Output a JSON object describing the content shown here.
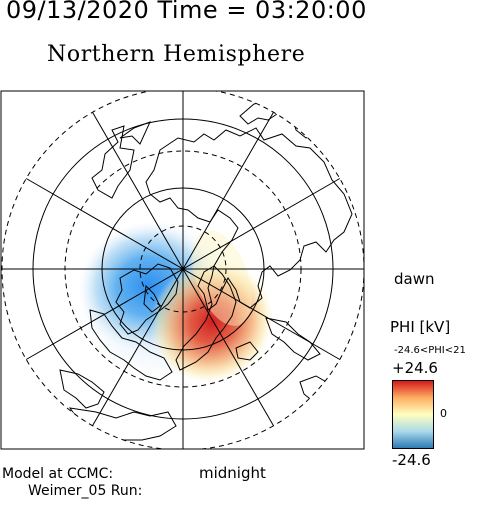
{
  "header": {
    "datetime": "09/13/2020 Time = 03:20:00",
    "hemisphere": "Northern Hemisphere"
  },
  "map": {
    "projection": "polar stereographic, north pole centered",
    "noon_label": "",
    "dawn_label": "dawn",
    "midnight_label": "midnight",
    "latitude_circles": [
      "dashed",
      "solid",
      "dashed",
      "solid",
      "dashed"
    ],
    "meridian_count": 12,
    "potential_cells": [
      {
        "sign": "negative",
        "side": "dusk / pre-midnight",
        "color": "#3f9ff0"
      },
      {
        "sign": "positive",
        "side": "dawn / post-midnight",
        "color": "#d8342a"
      }
    ]
  },
  "legend": {
    "variable_label": "PHI [kV]",
    "range_text": "-24.6<PHI<21",
    "max_label": "+24.6",
    "zero_label": "0",
    "min_label": "-24.6",
    "colors": [
      "#d7191c",
      "#fdae61",
      "#ffffbf",
      "#abd9e9",
      "#2c7bb6"
    ]
  },
  "footer": {
    "model_line": "Model at CCMC:",
    "run_line": "Weimer_05 Run:"
  }
}
